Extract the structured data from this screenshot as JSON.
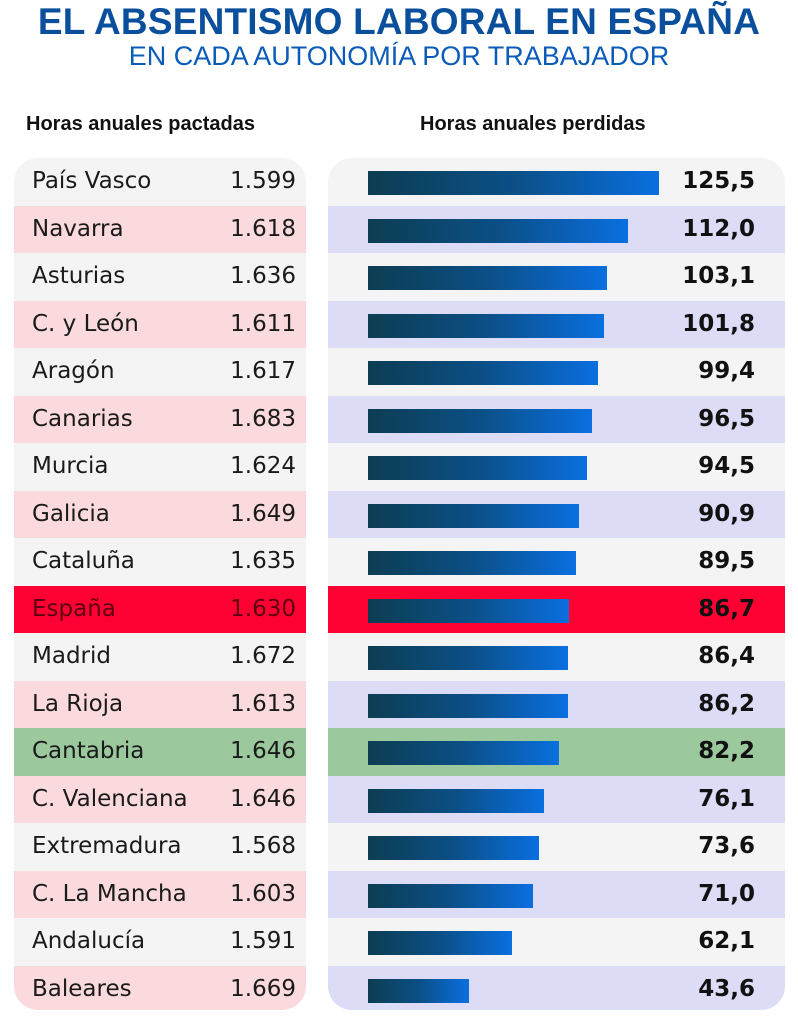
{
  "title": "EL ABSENTISMO LABORAL EN ESPAÑA",
  "subtitle": "EN CADA AUTONOMÍA POR TRABAJADOR",
  "left_header": "Horas anuales pactadas",
  "right_header": "Horas anuales perdidas",
  "colors": {
    "title": "#0a4f9c",
    "highlight_spain": "#ff0033",
    "highlight_cantabria": "#9bc99d",
    "row_alt_left": "#fadadd",
    "row_alt_right": "#dcdcf7",
    "bar_start": "#0d3d52",
    "bar_end": "#0a6fe0"
  },
  "chart_data": {
    "type": "bar",
    "orientation": "horizontal",
    "title": "EL ABSENTISMO LABORAL EN ESPAÑA",
    "subtitle": "EN CADA AUTONOMÍA POR TRABAJADOR",
    "xlim": [
      0,
      125.5
    ],
    "rows": [
      {
        "region": "País Vasco",
        "agreed_hours": "1.599",
        "lost_hours": "125,5",
        "value": 125.5,
        "highlight": ""
      },
      {
        "region": "Navarra",
        "agreed_hours": "1.618",
        "lost_hours": "112,0",
        "value": 112.0,
        "highlight": ""
      },
      {
        "region": "Asturias",
        "agreed_hours": "1.636",
        "lost_hours": "103,1",
        "value": 103.1,
        "highlight": ""
      },
      {
        "region": "C. y León",
        "agreed_hours": "1.611",
        "lost_hours": "101,8",
        "value": 101.8,
        "highlight": ""
      },
      {
        "region": "Aragón",
        "agreed_hours": "1.617",
        "lost_hours": "99,4",
        "value": 99.4,
        "highlight": ""
      },
      {
        "region": "Canarias",
        "agreed_hours": "1.683",
        "lost_hours": "96,5",
        "value": 96.5,
        "highlight": ""
      },
      {
        "region": "Murcia",
        "agreed_hours": "1.624",
        "lost_hours": "94,5",
        "value": 94.5,
        "highlight": ""
      },
      {
        "region": "Galicia",
        "agreed_hours": "1.649",
        "lost_hours": "90,9",
        "value": 90.9,
        "highlight": ""
      },
      {
        "region": "Cataluña",
        "agreed_hours": "1.635",
        "lost_hours": "89,5",
        "value": 89.5,
        "highlight": ""
      },
      {
        "region": "España",
        "agreed_hours": "1.630",
        "lost_hours": "86,7",
        "value": 86.7,
        "highlight": "red"
      },
      {
        "region": "Madrid",
        "agreed_hours": "1.672",
        "lost_hours": "86,4",
        "value": 86.4,
        "highlight": ""
      },
      {
        "region": "La Rioja",
        "agreed_hours": "1.613",
        "lost_hours": "86,2",
        "value": 86.2,
        "highlight": ""
      },
      {
        "region": "Cantabria",
        "agreed_hours": "1.646",
        "lost_hours": "82,2",
        "value": 82.2,
        "highlight": "green"
      },
      {
        "region": "C. Valenciana",
        "agreed_hours": "1.646",
        "lost_hours": "76,1",
        "value": 76.1,
        "highlight": ""
      },
      {
        "region": "Extremadura",
        "agreed_hours": "1.568",
        "lost_hours": "73,6",
        "value": 73.6,
        "highlight": ""
      },
      {
        "region": "C. La Mancha",
        "agreed_hours": "1.603",
        "lost_hours": "71,0",
        "value": 71.0,
        "highlight": ""
      },
      {
        "region": "Andalucía",
        "agreed_hours": "1.591",
        "lost_hours": "62,1",
        "value": 62.1,
        "highlight": ""
      },
      {
        "region": "Baleares",
        "agreed_hours": "1.669",
        "lost_hours": "43,6",
        "value": 43.6,
        "highlight": ""
      }
    ]
  }
}
